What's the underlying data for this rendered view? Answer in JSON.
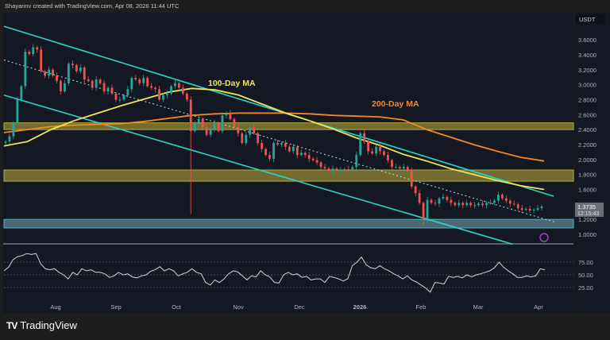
{
  "header": {
    "credit": "Shayannv created with TradingView.com, Apr 08, 2026 11:44 UTC"
  },
  "footer": {
    "brand": "TradingView",
    "logo": "tradingview-logo"
  },
  "colors": {
    "up": "#26a69a",
    "down": "#ef5350",
    "ma100": "#f0e35a",
    "ma200": "#f08a24",
    "channel": "#2ad4c6",
    "rsi": "#d1d4dc",
    "supply_zone": "#8a8236",
    "support_zone": "#5d7d87",
    "background": "#141823"
  },
  "chart_data": {
    "type": "candlestick",
    "currency": "USDT",
    "y_ticks": [
      "3.6000",
      "3.4000",
      "3.2000",
      "3.0000",
      "2.8000",
      "2.6000",
      "2.4000",
      "2.2000",
      "2.0000",
      "1.8000",
      "1.6000",
      "1.2000",
      "1.0000"
    ],
    "x_ticks": [
      "Aug",
      "Sep",
      "Oct",
      "Nov",
      "Dec",
      "2026",
      "Feb",
      "Mar",
      "Apr"
    ],
    "ylim": [
      0.9,
      3.75
    ],
    "last_price": "1.3735",
    "countdown": "12:15:43",
    "close": [
      2.24,
      2.31,
      2.49,
      2.8,
      2.98,
      3.44,
      3.41,
      3.5,
      3.47,
      3.18,
      3.12,
      3.2,
      3.12,
      3.05,
      2.91,
      3.02,
      3.28,
      3.26,
      3.18,
      3.23,
      3.07,
      3.05,
      2.96,
      3.07,
      3.02,
      2.91,
      2.96,
      2.88,
      2.8,
      2.8,
      2.86,
      2.94,
      3.09,
      3.07,
      3.02,
      3.09,
      2.98,
      2.96,
      2.94,
      2.8,
      2.86,
      2.88,
      2.98,
      3.02,
      2.96,
      2.88,
      2.8,
      2.38,
      2.49,
      2.54,
      2.43,
      2.33,
      2.41,
      2.49,
      2.38,
      2.59,
      2.62,
      2.54,
      2.43,
      2.35,
      2.22,
      2.33,
      2.43,
      2.35,
      2.22,
      2.14,
      2.06,
      2.01,
      2.22,
      2.2,
      2.22,
      2.17,
      2.11,
      2.17,
      2.06,
      2.09,
      2.06,
      2.01,
      1.99,
      1.96,
      1.9,
      1.88,
      1.85,
      1.88,
      1.86,
      1.86,
      1.87,
      1.86,
      1.9,
      2.06,
      2.35,
      2.24,
      2.11,
      2.08,
      2.17,
      2.11,
      2.06,
      1.99,
      1.9,
      1.9,
      1.88,
      1.9,
      1.85,
      1.64,
      1.55,
      1.42,
      1.21,
      1.46,
      1.42,
      1.41,
      1.48,
      1.5,
      1.46,
      1.42,
      1.39,
      1.42,
      1.39,
      1.42,
      1.39,
      1.39,
      1.41,
      1.39,
      1.42,
      1.42,
      1.45,
      1.53,
      1.48,
      1.45,
      1.41,
      1.4,
      1.35,
      1.33,
      1.34,
      1.32,
      1.33,
      1.35,
      1.3735
    ],
    "wick_lows": [
      {
        "index": 47,
        "low": 1.27
      },
      {
        "index": 106,
        "low": 1.13
      }
    ],
    "ma100": {
      "label": "100-Day MA",
      "values": [
        2.18,
        2.24,
        2.4,
        2.52,
        2.62,
        2.72,
        2.81,
        2.9,
        2.95,
        2.93,
        2.86,
        2.74,
        2.62,
        2.52,
        2.41,
        2.29,
        2.19,
        2.07,
        1.98,
        1.88,
        1.8,
        1.72,
        1.65,
        1.6
      ]
    },
    "ma200": {
      "label": "200-Day MA",
      "values": [
        2.36,
        2.4,
        2.44,
        2.46,
        2.47,
        2.48,
        2.51,
        2.55,
        2.59,
        2.61,
        2.62,
        2.62,
        2.62,
        2.61,
        2.59,
        2.58,
        2.57,
        2.53,
        2.4,
        2.3,
        2.2,
        2.11,
        2.03,
        1.98
      ]
    },
    "zones": [
      {
        "kind": "resistance",
        "from": 2.4,
        "to": 2.49
      },
      {
        "kind": "resistance",
        "from": 1.71,
        "to": 1.86
      },
      {
        "kind": "support",
        "from": 1.085,
        "to": 1.2
      }
    ],
    "channel": {
      "upper": [
        3.78,
        1.51
      ],
      "middle": [
        3.33,
        1.16
      ],
      "lower": [
        2.86,
        0.87
      ]
    },
    "rsi": {
      "y_ticks": [
        "75.00",
        "50.00",
        "25.00"
      ],
      "levels": [
        75,
        50,
        25
      ],
      "values": [
        58,
        65,
        80,
        86,
        88,
        92,
        90,
        92,
        72,
        62,
        60,
        62,
        55,
        50,
        42,
        55,
        50,
        62,
        58,
        60,
        55,
        55,
        52,
        45,
        48,
        55,
        50,
        52,
        46,
        44,
        48,
        50,
        57,
        60,
        66,
        58,
        62,
        58,
        48,
        52,
        55,
        62,
        55,
        52,
        35,
        30,
        40,
        35,
        42,
        52,
        58,
        56,
        48,
        40,
        48,
        46,
        58,
        50,
        46,
        35,
        34,
        50,
        55,
        50,
        52,
        45,
        47,
        40,
        42,
        42,
        35,
        47,
        45,
        42,
        38,
        42,
        68,
        75,
        85,
        70,
        64,
        62,
        68,
        62,
        58,
        52,
        48,
        42,
        48,
        40,
        36,
        30,
        24,
        16,
        35,
        34,
        32,
        47,
        45,
        47,
        44,
        50,
        46,
        50,
        52,
        55,
        58,
        64,
        75,
        65,
        58,
        52,
        45,
        45,
        48,
        46,
        48,
        62,
        60
      ]
    }
  }
}
